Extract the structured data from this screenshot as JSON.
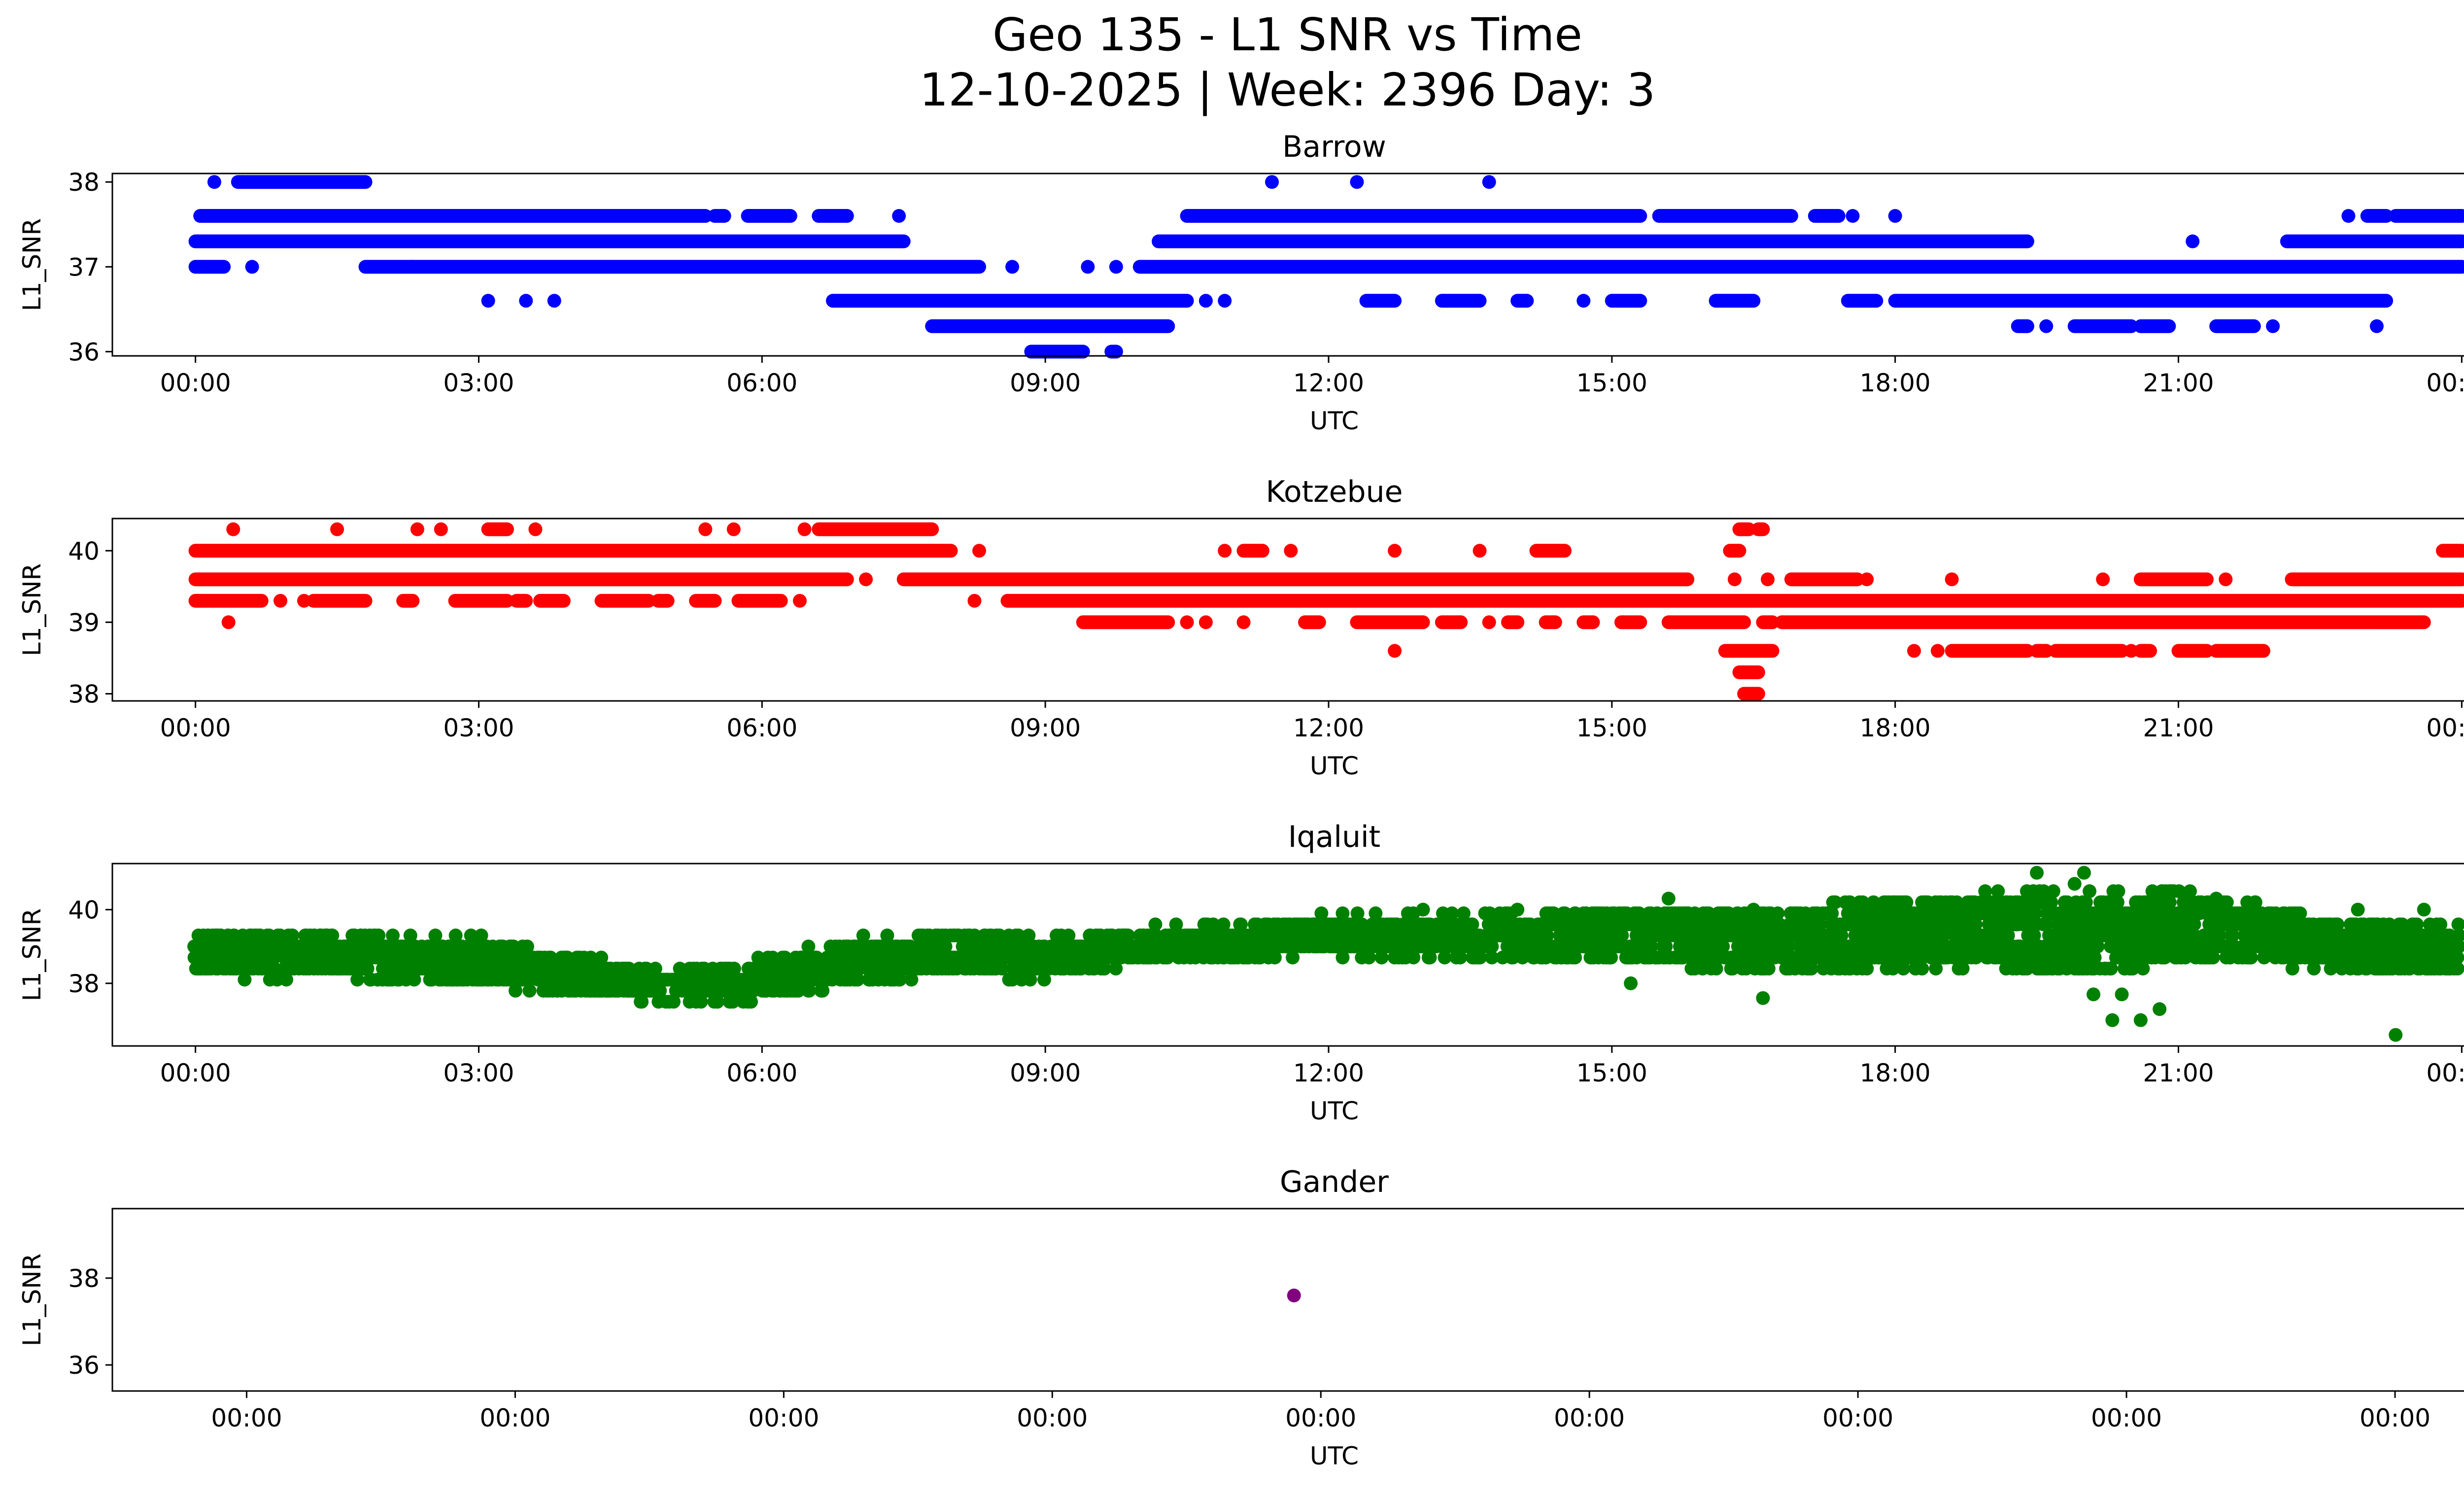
{
  "figure": {
    "title_line1": "Geo 135 - L1 SNR vs Time",
    "title_line2": "12-10-2025 | Week: 2396 Day: 3"
  },
  "chart_data": [
    {
      "type": "scatter",
      "title": "Barrow",
      "xlabel": "UTC",
      "ylabel": "L1_SNR",
      "color": "#0000ff",
      "x_unit": "hours UTC",
      "xlim": [
        -0.88,
        25.0
      ],
      "ylim": [
        35.95,
        38.1
      ],
      "x_ticks": [
        0,
        3,
        6,
        9,
        12,
        15,
        18,
        21,
        24
      ],
      "x_tick_labels": [
        "00:00",
        "03:00",
        "06:00",
        "09:00",
        "12:00",
        "15:00",
        "18:00",
        "21:00",
        "00:00"
      ],
      "y_ticks": [
        36,
        37,
        38
      ],
      "y_tick_labels": [
        "36",
        "37",
        "38"
      ],
      "bands": [
        {
          "y": 38.0,
          "segments": [
            [
              0.2,
              0.2
            ],
            [
              0.45,
              0.5
            ],
            [
              0.5,
              1.8
            ],
            [
              11.4,
              11.4
            ],
            [
              12.3,
              12.3
            ],
            [
              13.7,
              13.7
            ]
          ]
        },
        {
          "y": 37.6,
          "segments": [
            [
              0.05,
              5.4
            ],
            [
              5.5,
              5.6
            ],
            [
              5.85,
              6.3
            ],
            [
              6.6,
              6.9
            ],
            [
              7.45,
              7.45
            ],
            [
              10.5,
              13.1
            ],
            [
              13.1,
              15.3
            ],
            [
              15.5,
              16.9
            ],
            [
              17.15,
              17.4
            ],
            [
              17.55,
              17.55
            ],
            [
              18.0,
              18.0
            ],
            [
              22.8,
              22.8
            ],
            [
              23.0,
              23.2
            ],
            [
              23.3,
              23.6
            ],
            [
              23.6,
              24.0
            ]
          ]
        },
        {
          "y": 37.3,
          "segments": [
            [
              0.0,
              7.5
            ],
            [
              10.2,
              19.4
            ],
            [
              21.15,
              21.15
            ],
            [
              22.15,
              24.0
            ]
          ]
        },
        {
          "y": 37.0,
          "segments": [
            [
              0.0,
              0.3
            ],
            [
              0.6,
              0.6
            ],
            [
              1.8,
              2.3
            ],
            [
              2.3,
              8.3
            ],
            [
              8.65,
              8.65
            ],
            [
              9.45,
              9.45
            ],
            [
              9.75,
              9.75
            ],
            [
              10.0,
              24.0
            ]
          ]
        },
        {
          "y": 36.6,
          "segments": [
            [
              3.1,
              3.1
            ],
            [
              3.5,
              3.5
            ],
            [
              3.8,
              3.8
            ],
            [
              6.75,
              10.5
            ],
            [
              10.7,
              10.7
            ],
            [
              10.9,
              10.9
            ],
            [
              12.4,
              12.7
            ],
            [
              13.2,
              13.6
            ],
            [
              14.0,
              14.1
            ],
            [
              14.7,
              14.7
            ],
            [
              15.0,
              15.3
            ],
            [
              16.1,
              16.5
            ],
            [
              17.5,
              17.8
            ],
            [
              18.0,
              23.2
            ]
          ]
        },
        {
          "y": 36.3,
          "segments": [
            [
              7.8,
              10.3
            ],
            [
              19.3,
              19.4
            ],
            [
              19.6,
              19.6
            ],
            [
              19.9,
              20.5
            ],
            [
              20.6,
              20.9
            ],
            [
              21.4,
              21.8
            ],
            [
              22.0,
              22.0
            ],
            [
              23.1,
              23.1
            ]
          ]
        },
        {
          "y": 36.0,
          "segments": [
            [
              8.85,
              9.4
            ],
            [
              9.7,
              9.75
            ]
          ]
        }
      ]
    },
    {
      "type": "scatter",
      "title": "Kotzebue",
      "xlabel": "UTC",
      "ylabel": "L1_SNR",
      "color": "#ff0000",
      "x_unit": "hours UTC",
      "xlim": [
        -0.88,
        25.0
      ],
      "ylim": [
        37.9,
        40.45
      ],
      "x_ticks": [
        0,
        3,
        6,
        9,
        12,
        15,
        18,
        21,
        24
      ],
      "x_tick_labels": [
        "00:00",
        "03:00",
        "06:00",
        "09:00",
        "12:00",
        "15:00",
        "18:00",
        "21:00",
        "00:00"
      ],
      "y_ticks": [
        38,
        39,
        40
      ],
      "y_tick_labels": [
        "38",
        "39",
        "40"
      ],
      "bands": [
        {
          "y": 40.3,
          "segments": [
            [
              0.4,
              0.4
            ],
            [
              1.5,
              1.5
            ],
            [
              2.35,
              2.35
            ],
            [
              2.6,
              2.6
            ],
            [
              3.1,
              3.3
            ],
            [
              3.6,
              3.6
            ],
            [
              5.4,
              5.4
            ],
            [
              5.7,
              5.7
            ],
            [
              6.45,
              6.45
            ],
            [
              6.6,
              7.8
            ],
            [
              16.35,
              16.45
            ],
            [
              16.55,
              16.6
            ]
          ]
        },
        {
          "y": 40.0,
          "segments": [
            [
              0.0,
              8.0
            ],
            [
              8.3,
              8.3
            ],
            [
              10.9,
              10.9
            ],
            [
              11.1,
              11.3
            ],
            [
              11.6,
              11.6
            ],
            [
              12.7,
              12.7
            ],
            [
              13.6,
              13.6
            ],
            [
              14.2,
              14.5
            ],
            [
              16.25,
              16.35
            ],
            [
              23.8,
              24.0
            ]
          ]
        },
        {
          "y": 39.6,
          "segments": [
            [
              0.0,
              6.9
            ],
            [
              7.1,
              7.1
            ],
            [
              7.5,
              15.8
            ],
            [
              16.3,
              16.3
            ],
            [
              16.65,
              16.65
            ],
            [
              16.9,
              17.6
            ],
            [
              17.7,
              17.7
            ],
            [
              18.6,
              18.6
            ],
            [
              20.2,
              20.2
            ],
            [
              20.6,
              21.3
            ],
            [
              21.5,
              21.5
            ],
            [
              22.2,
              24.0
            ]
          ]
        },
        {
          "y": 39.3,
          "segments": [
            [
              0.0,
              0.7
            ],
            [
              0.9,
              0.9
            ],
            [
              1.15,
              1.15
            ],
            [
              1.25,
              1.8
            ],
            [
              2.2,
              2.3
            ],
            [
              2.75,
              3.3
            ],
            [
              3.4,
              3.5
            ],
            [
              3.65,
              3.9
            ],
            [
              4.3,
              4.8
            ],
            [
              4.9,
              5.0
            ],
            [
              5.3,
              5.5
            ],
            [
              5.75,
              6.2
            ],
            [
              6.4,
              6.4
            ],
            [
              8.25,
              8.25
            ],
            [
              8.6,
              24.0
            ]
          ]
        },
        {
          "y": 39.0,
          "segments": [
            [
              0.35,
              0.35
            ],
            [
              9.4,
              10.3
            ],
            [
              10.5,
              10.5
            ],
            [
              10.7,
              10.7
            ],
            [
              11.1,
              11.1
            ],
            [
              11.75,
              11.9
            ],
            [
              12.3,
              13.0
            ],
            [
              13.2,
              13.4
            ],
            [
              13.7,
              13.7
            ],
            [
              13.9,
              14.0
            ],
            [
              14.3,
              14.4
            ],
            [
              14.7,
              14.8
            ],
            [
              15.1,
              15.3
            ],
            [
              15.6,
              16.4
            ],
            [
              16.6,
              16.7
            ],
            [
              16.8,
              23.6
            ]
          ]
        },
        {
          "y": 38.6,
          "segments": [
            [
              12.7,
              12.7
            ],
            [
              16.2,
              16.7
            ],
            [
              18.2,
              18.2
            ],
            [
              18.45,
              18.45
            ],
            [
              18.6,
              19.4
            ],
            [
              19.5,
              19.6
            ],
            [
              19.7,
              20.4
            ],
            [
              20.5,
              20.5
            ],
            [
              20.6,
              20.7
            ],
            [
              21.0,
              21.3
            ],
            [
              21.4,
              21.9
            ]
          ]
        },
        {
          "y": 38.3,
          "segments": [
            [
              16.35,
              16.55
            ]
          ]
        },
        {
          "y": 38.0,
          "segments": [
            [
              16.4,
              16.55
            ]
          ]
        }
      ]
    },
    {
      "type": "scatter",
      "title": "Iqaluit",
      "xlabel": "UTC",
      "ylabel": "L1_SNR",
      "color": "#008000",
      "x_unit": "hours UTC",
      "xlim": [
        -0.88,
        25.0
      ],
      "ylim": [
        36.3,
        41.25
      ],
      "x_ticks": [
        0,
        3,
        6,
        9,
        12,
        15,
        18,
        21,
        24
      ],
      "x_tick_labels": [
        "00:00",
        "03:00",
        "06:00",
        "09:00",
        "12:00",
        "15:00",
        "18:00",
        "21:00",
        "00:00"
      ],
      "y_ticks": [
        38,
        40
      ],
      "y_tick_labels": [
        "38",
        "40"
      ],
      "trend": [
        {
          "x": 0.0,
          "center": 38.8,
          "spread": 0.6
        },
        {
          "x": 1.0,
          "center": 38.8,
          "spread": 0.6
        },
        {
          "x": 2.0,
          "center": 38.7,
          "spread": 0.6
        },
        {
          "x": 3.0,
          "center": 38.6,
          "spread": 0.6
        },
        {
          "x": 4.0,
          "center": 38.2,
          "spread": 0.5
        },
        {
          "x": 5.0,
          "center": 37.9,
          "spread": 0.35
        },
        {
          "x": 6.0,
          "center": 38.1,
          "spread": 0.5
        },
        {
          "x": 7.0,
          "center": 38.6,
          "spread": 0.55
        },
        {
          "x": 8.0,
          "center": 38.8,
          "spread": 0.55
        },
        {
          "x": 9.0,
          "center": 38.7,
          "spread": 0.5
        },
        {
          "x": 10.0,
          "center": 39.0,
          "spread": 0.45
        },
        {
          "x": 11.0,
          "center": 39.1,
          "spread": 0.45
        },
        {
          "x": 12.0,
          "center": 39.3,
          "spread": 0.5
        },
        {
          "x": 13.0,
          "center": 39.3,
          "spread": 0.5
        },
        {
          "x": 14.0,
          "center": 39.3,
          "spread": 0.6
        },
        {
          "x": 15.0,
          "center": 39.3,
          "spread": 0.7
        },
        {
          "x": 16.0,
          "center": 39.2,
          "spread": 0.75
        },
        {
          "x": 17.0,
          "center": 39.2,
          "spread": 0.85
        },
        {
          "x": 18.0,
          "center": 39.3,
          "spread": 0.9
        },
        {
          "x": 19.0,
          "center": 39.5,
          "spread": 0.95
        },
        {
          "x": 20.0,
          "center": 39.3,
          "spread": 1.1
        },
        {
          "x": 21.0,
          "center": 39.6,
          "spread": 0.9
        },
        {
          "x": 22.0,
          "center": 39.3,
          "spread": 0.7
        },
        {
          "x": 23.0,
          "center": 39.0,
          "spread": 0.7
        },
        {
          "x": 24.0,
          "center": 38.9,
          "spread": 0.6
        }
      ],
      "extra_points": [
        {
          "x": 19.5,
          "y": 41.0
        },
        {
          "x": 20.0,
          "y": 41.0
        },
        {
          "x": 19.9,
          "y": 40.7
        },
        {
          "x": 16.5,
          "y": 40.0
        },
        {
          "x": 15.6,
          "y": 40.3
        },
        {
          "x": 13.0,
          "y": 40.0
        },
        {
          "x": 14.0,
          "y": 40.0
        },
        {
          "x": 15.2,
          "y": 38.0
        },
        {
          "x": 16.6,
          "y": 37.6
        },
        {
          "x": 20.1,
          "y": 37.7
        },
        {
          "x": 20.3,
          "y": 37.0
        },
        {
          "x": 20.6,
          "y": 37.0
        },
        {
          "x": 20.4,
          "y": 37.7
        },
        {
          "x": 20.8,
          "y": 37.3
        },
        {
          "x": 23.3,
          "y": 36.6
        },
        {
          "x": 22.9,
          "y": 40.0
        },
        {
          "x": 23.6,
          "y": 40.0
        },
        {
          "x": 21.4,
          "y": 40.3
        }
      ]
    },
    {
      "type": "scatter",
      "title": "Gander",
      "xlabel": "UTC",
      "ylabel": "L1_SNR",
      "color": "#800080",
      "x_unit": "minutes from first tick",
      "xlim": [
        -0.5,
        8.6
      ],
      "ylim": [
        35.4,
        39.6
      ],
      "x_ticks": [
        0,
        1,
        2,
        3,
        4,
        5,
        6,
        7,
        8
      ],
      "x_tick_labels": [
        "00:00",
        "00:00",
        "00:00",
        "00:00",
        "00:00",
        "00:00",
        "00:00",
        "00:00",
        "00:00"
      ],
      "y_ticks": [
        36,
        38
      ],
      "y_tick_labels": [
        "36",
        "38"
      ],
      "points": [
        {
          "x": 3.9,
          "y": 37.6
        }
      ]
    }
  ]
}
